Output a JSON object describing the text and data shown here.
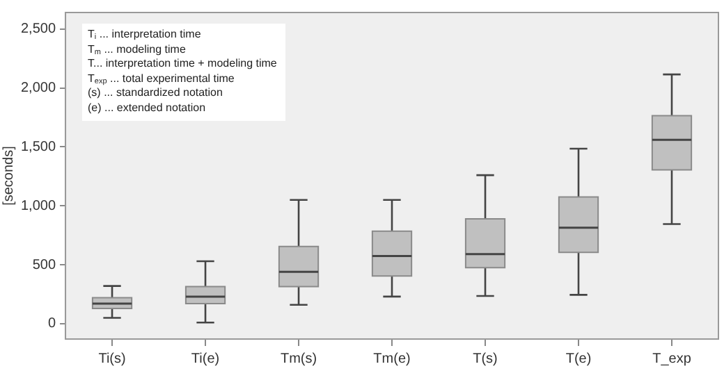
{
  "chart_data": {
    "type": "box",
    "ylabel": "[seconds]",
    "categories": [
      "Ti(s)",
      "Ti(e)",
      "Tm(s)",
      "Tm(e)",
      "T(s)",
      "T(e)",
      "T_exp"
    ],
    "boxes": [
      {
        "low": 50,
        "q1": 130,
        "median": 170,
        "q3": 220,
        "high": 320
      },
      {
        "low": 10,
        "q1": 170,
        "median": 230,
        "q3": 315,
        "high": 530
      },
      {
        "low": 160,
        "q1": 315,
        "median": 440,
        "q3": 655,
        "high": 1050
      },
      {
        "low": 230,
        "q1": 405,
        "median": 575,
        "q3": 785,
        "high": 1050
      },
      {
        "low": 235,
        "q1": 475,
        "median": 590,
        "q3": 890,
        "high": 1260
      },
      {
        "low": 245,
        "q1": 605,
        "median": 815,
        "q3": 1075,
        "high": 1485
      },
      {
        "low": 845,
        "q1": 1305,
        "median": 1560,
        "q3": 1765,
        "high": 2115
      }
    ],
    "color": "#c0c0c0",
    "ylim": [
      -130,
      2640
    ],
    "yticks": [
      {
        "value": 0,
        "label": "0"
      },
      {
        "value": 500,
        "label": "500"
      },
      {
        "value": 1000,
        "label": "1,000"
      },
      {
        "value": 1500,
        "label": "1,500"
      },
      {
        "value": 2000,
        "label": "2,000"
      },
      {
        "value": 2500,
        "label": "2,500"
      }
    ],
    "grid": false,
    "legend": false,
    "annotations": [
      "T$_{i}$ ... interpretation time",
      "T$_{m}$ ... modeling time",
      "T... interpretation time + modeling time",
      "T$_{exp}$ ... total experimental time",
      "(s) ... standardized notation",
      "(e) ... extended notation"
    ]
  }
}
